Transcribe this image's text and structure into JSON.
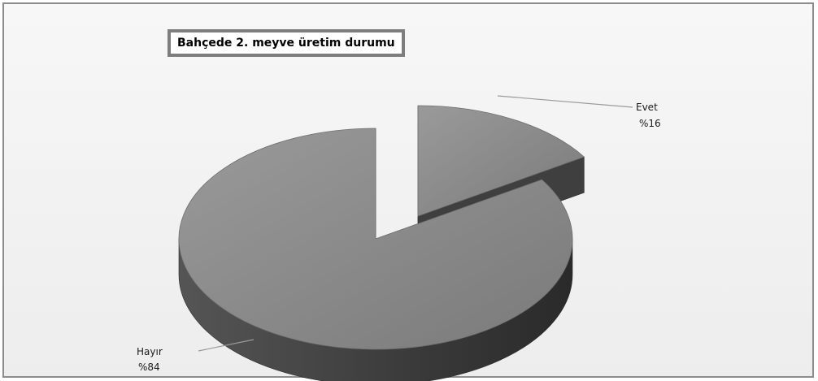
{
  "chart_data": {
    "type": "pie",
    "style": "3d-exploded",
    "title": "Bahçede 2. meyve üretim durumu",
    "slices": [
      {
        "label": "Evet",
        "value_text": "%16",
        "value": 16
      },
      {
        "label": "Hayır",
        "value_text": "%84",
        "value": 84
      }
    ],
    "legend": "none",
    "colors": {
      "top": "#8a8a8a",
      "side": "#3c3c3c",
      "leader": "#9a9a9a"
    }
  }
}
